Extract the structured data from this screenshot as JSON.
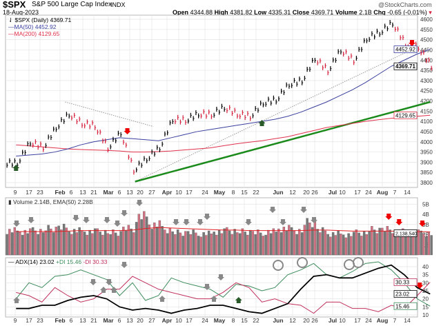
{
  "header": {
    "symbol": "$SPX",
    "name": "S&P 500 Large Cap Index",
    "exchange": "INDX",
    "date": "18-Aug-2023",
    "brand": "@StockCharts.com",
    "open_label": "Open",
    "open": "4344.88",
    "high_label": "High",
    "high": "4381.82",
    "low_label": "Low",
    "low": "4335.31",
    "close_label": "Close",
    "close": "4369.71",
    "volume_label": "Volume",
    "volume": "2.1B",
    "chg_label": "Chg",
    "chg": "-0.65 (-0.01%)"
  },
  "colors": {
    "price_up": "#000000",
    "price_down": "#d6203c",
    "ma50": "#3a3f9e",
    "ma200": "#e0304a",
    "trendline": "#1a8a1a",
    "plus_di": "#3a8a5a",
    "minus_di": "#c0305a",
    "adx": "#000000",
    "vol_up": "#777777",
    "vol_down": "#d07080"
  },
  "chart_data": [
    {
      "type": "line",
      "panel": "price",
      "legend": [
        "$SPX (Daily) 4369.71",
        "MA(50) 4452.92",
        "MA(200) 4129.65"
      ],
      "ylim": [
        3790,
        4620
      ],
      "yticks": [
        3800,
        3850,
        3900,
        3950,
        4000,
        4050,
        4100,
        4150,
        4200,
        4250,
        4300,
        4350,
        4400,
        4450,
        4500,
        4550,
        4600
      ],
      "last_labels": {
        "ma50": "4452.92",
        "close": "4369.71",
        "ma200": "4129.65"
      },
      "x": [
        "2023-01-06",
        "2023-01-13",
        "2023-01-20",
        "2023-01-27",
        "2023-02-03",
        "2023-02-10",
        "2023-02-17",
        "2023-02-24",
        "2023-03-03",
        "2023-03-10",
        "2023-03-17",
        "2023-03-24",
        "2023-03-31",
        "2023-04-06",
        "2023-04-14",
        "2023-04-21",
        "2023-04-28",
        "2023-05-05",
        "2023-05-12",
        "2023-05-19",
        "2023-05-26",
        "2023-06-02",
        "2023-06-09",
        "2023-06-16",
        "2023-06-23",
        "2023-06-30",
        "2023-07-07",
        "2023-07-14",
        "2023-07-21",
        "2023-07-28",
        "2023-08-04",
        "2023-08-11",
        "2023-08-18"
      ],
      "series": [
        {
          "name": "$SPX",
          "values": [
            3895,
            3999,
            3972,
            4070,
            4136,
            4090,
            4079,
            3970,
            4045,
            3861,
            3917,
            3971,
            4109,
            4105,
            4137,
            4133,
            4169,
            4136,
            4124,
            4191,
            4205,
            4282,
            4299,
            4409,
            4348,
            4450,
            4398,
            4505,
            4536,
            4582,
            4478,
            4464,
            4370
          ]
        },
        {
          "name": "MA(50)",
          "values": [
            3930,
            3935,
            3940,
            3950,
            3965,
            3985,
            4000,
            4010,
            4020,
            4015,
            4010,
            4005,
            4020,
            4035,
            4050,
            4060,
            4070,
            4080,
            4090,
            4100,
            4110,
            4125,
            4145,
            4170,
            4195,
            4225,
            4255,
            4290,
            4330,
            4370,
            4400,
            4430,
            4453
          ]
        },
        {
          "name": "MA(200)",
          "values": [
            3985,
            3980,
            3975,
            3970,
            3965,
            3962,
            3960,
            3958,
            3955,
            3950,
            3950,
            3952,
            3955,
            3960,
            3965,
            3970,
            3980,
            3990,
            3998,
            4005,
            4015,
            4025,
            4040,
            4055,
            4070,
            4080,
            4090,
            4100,
            4108,
            4115,
            4120,
            4125,
            4130
          ]
        }
      ],
      "xticks": [
        "9",
        "17",
        "23",
        "Feb",
        "6",
        "13",
        "21",
        "Mar",
        "6",
        "13",
        "20",
        "27",
        "Apr",
        "10",
        "17",
        "24",
        "May",
        "8",
        "15",
        "22",
        "Jun",
        "12",
        "20",
        "26",
        "Jul",
        "10",
        "17",
        "24",
        "Aug",
        "7",
        "14"
      ],
      "trendlines": [
        {
          "from": [
            "2023-03-13",
            3805
          ],
          "to": [
            "2023-08-18",
            4195
          ]
        }
      ]
    },
    {
      "type": "bar",
      "panel": "volume",
      "legend": "Volume 2.14B, EMA(50) 2.28B",
      "yticks": [
        "1B",
        "2B",
        "3B",
        "4B",
        "5B"
      ],
      "ylim": [
        0,
        5.6
      ],
      "last_label": "2,138,540",
      "values": [
        2.4,
        2.3,
        2.4,
        2.6,
        2.7,
        2.4,
        2.3,
        2.3,
        2.2,
        2.6,
        3.8,
        3.0,
        2.5,
        2.2,
        2.2,
        2.1,
        2.3,
        2.4,
        2.3,
        2.2,
        2.3,
        2.6,
        2.4,
        3.2,
        2.4,
        2.1,
        2.0,
        2.2,
        2.5,
        2.5,
        2.3,
        2.2,
        2.1
      ],
      "ema": [
        2.3,
        2.3,
        2.3,
        2.3,
        2.35,
        2.4,
        2.4,
        2.4,
        2.4,
        2.45,
        2.6,
        2.7,
        2.65,
        2.6,
        2.55,
        2.5,
        2.45,
        2.45,
        2.4,
        2.4,
        2.4,
        2.4,
        2.4,
        2.45,
        2.45,
        2.4,
        2.35,
        2.35,
        2.35,
        2.35,
        2.3,
        2.3,
        2.28
      ]
    },
    {
      "type": "line",
      "panel": "adx",
      "legend": [
        "ADX(14) 23.02",
        "+DI 15.46",
        "-DI 30.33"
      ],
      "ylim": [
        6,
        46
      ],
      "yticks": [
        10,
        15,
        20,
        25,
        30,
        35,
        40
      ],
      "last_labels": {
        "minus_di": "30.33",
        "adx": "23.02",
        "plus_di": "15.46"
      },
      "series": [
        {
          "name": "ADX(14)",
          "values": [
            14,
            14,
            16,
            16,
            19,
            21,
            22,
            20,
            15,
            13,
            14,
            13,
            11,
            13,
            14,
            16,
            16,
            14,
            12,
            11,
            14,
            17,
            26,
            34,
            35,
            33,
            33,
            36,
            39,
            41,
            35,
            27,
            23.02
          ]
        },
        {
          "name": "+DI",
          "values": [
            20,
            30,
            27,
            34,
            35,
            38,
            35,
            32,
            22,
            30,
            19,
            22,
            33,
            30,
            28,
            26,
            21,
            29,
            28,
            25,
            27,
            35,
            38,
            42,
            35,
            33,
            37,
            42,
            43,
            38,
            30,
            20,
            15.46
          ]
        },
        {
          "name": "-DI",
          "values": [
            24,
            22,
            18,
            27,
            22,
            18,
            20,
            26,
            26,
            34,
            30,
            26,
            24,
            22,
            20,
            20,
            24,
            30,
            27,
            18,
            20,
            17,
            16,
            11,
            18,
            18,
            14,
            14,
            12,
            16,
            14,
            22,
            30.33
          ]
        }
      ]
    }
  ]
}
